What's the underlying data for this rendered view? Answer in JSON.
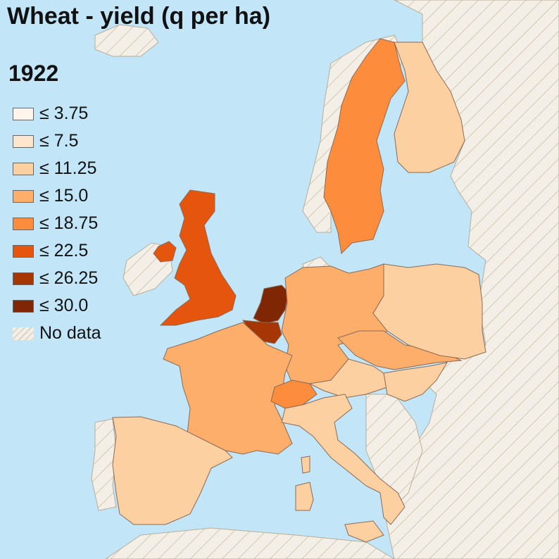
{
  "title": "Wheat - yield (q per ha)",
  "year": "1922",
  "legend": [
    {
      "label": "≤ 3.75",
      "color": "#fff5eb"
    },
    {
      "label": "≤ 7.5",
      "color": "#fee6ce"
    },
    {
      "label": "≤ 11.25",
      "color": "#fdd0a2"
    },
    {
      "label": "≤ 15.0",
      "color": "#fdae6b"
    },
    {
      "label": "≤ 18.75",
      "color": "#fd8d3c"
    },
    {
      "label": "≤ 22.5",
      "color": "#e6550d"
    },
    {
      "label": "≤ 26.25",
      "color": "#a63603"
    },
    {
      "label": "≤ 30.0",
      "color": "#7f2704"
    }
  ],
  "no_data_label": "No data",
  "colors": {
    "sea": "#c2e6f8",
    "no_data": "#f3efe6",
    "border": "#8a6a55"
  },
  "regions": [
    {
      "name": "United Kingdom",
      "class": "≤ 22.5"
    },
    {
      "name": "Ireland",
      "class": "No data"
    },
    {
      "name": "Northern Ireland",
      "class": "≤ 22.5"
    },
    {
      "name": "Netherlands",
      "class": "≤ 30.0"
    },
    {
      "name": "Belgium",
      "class": "≤ 26.25"
    },
    {
      "name": "Luxembourg",
      "class": "≤ 26.25"
    },
    {
      "name": "France",
      "class": "≤ 15.0"
    },
    {
      "name": "Germany",
      "class": "≤ 15.0"
    },
    {
      "name": "Switzerland",
      "class": "≤ 18.75"
    },
    {
      "name": "Czechoslovakia",
      "class": "≤ 15.0"
    },
    {
      "name": "Poland",
      "class": "≤ 11.25"
    },
    {
      "name": "Austria",
      "class": "≤ 11.25"
    },
    {
      "name": "Hungary",
      "class": "≤ 11.25"
    },
    {
      "name": "Italy",
      "class": "≤ 11.25"
    },
    {
      "name": "Spain",
      "class": "≤ 11.25"
    },
    {
      "name": "Portugal",
      "class": "No data"
    },
    {
      "name": "Sweden",
      "class": "≤ 18.75"
    },
    {
      "name": "Norway",
      "class": "No data"
    },
    {
      "name": "Finland",
      "class": "≤ 11.25"
    },
    {
      "name": "Denmark",
      "class": "No data"
    }
  ]
}
